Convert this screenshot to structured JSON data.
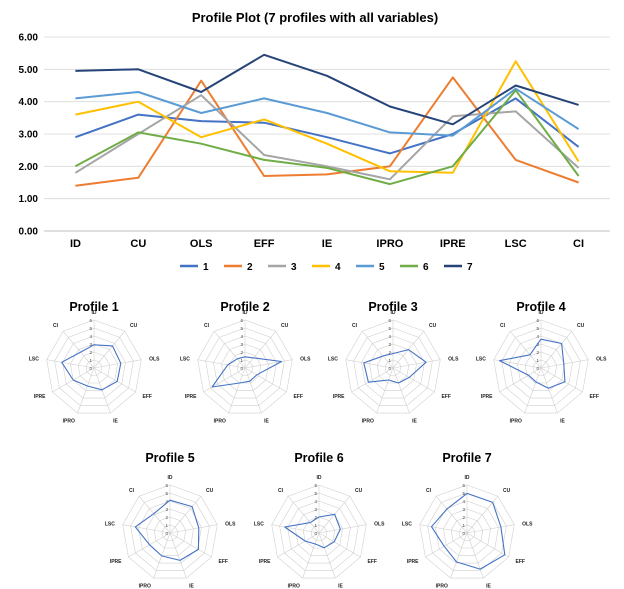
{
  "chart_data": [
    {
      "type": "line",
      "title": "Profile Plot (7 profiles with all variables)",
      "categories": [
        "ID",
        "CU",
        "OLS",
        "EFF",
        "IE",
        "IPRO",
        "IPRE",
        "LSC",
        "CI"
      ],
      "y_tick_labels": [
        "0.00",
        "1.00",
        "2.00",
        "3.00",
        "4.00",
        "5.00",
        "6.00"
      ],
      "ylim": [
        0,
        6
      ],
      "grid": true,
      "legend_position": "bottom",
      "series": [
        {
          "name": "1",
          "color": "#4472C4",
          "values": [
            2.9,
            3.6,
            3.4,
            3.35,
            2.9,
            2.4,
            3.0,
            4.1,
            2.6
          ]
        },
        {
          "name": "2",
          "color": "#ED7D31",
          "values": [
            1.4,
            1.65,
            4.65,
            1.7,
            1.75,
            2.0,
            4.75,
            2.2,
            1.5
          ]
        },
        {
          "name": "3",
          "color": "#A5A5A5",
          "values": [
            1.8,
            3.0,
            4.2,
            2.35,
            2.0,
            1.6,
            3.55,
            3.7,
            1.95
          ]
        },
        {
          "name": "4",
          "color": "#FFC000",
          "values": [
            3.6,
            4.0,
            2.9,
            3.45,
            2.7,
            1.85,
            1.8,
            5.25,
            2.15
          ]
        },
        {
          "name": "5",
          "color": "#5B9BD5",
          "values": [
            4.1,
            4.3,
            3.65,
            4.1,
            3.65,
            3.05,
            2.95,
            4.4,
            3.15
          ]
        },
        {
          "name": "6",
          "color": "#70AD47",
          "values": [
            2.0,
            3.05,
            2.7,
            2.2,
            1.95,
            1.45,
            2.0,
            4.35,
            1.7
          ]
        },
        {
          "name": "7",
          "color": "#264478",
          "values": [
            4.95,
            5.0,
            4.3,
            5.45,
            4.8,
            3.85,
            3.3,
            4.5,
            3.9
          ]
        }
      ]
    },
    {
      "type": "radar",
      "axes": [
        "ID",
        "CU",
        "OLS",
        "EFF",
        "IE",
        "IPRO",
        "IPRE",
        "LSC",
        "CI"
      ],
      "ring_labels": [
        "0",
        "1",
        "2",
        "3",
        "4",
        "5",
        "6"
      ],
      "rmax": 6,
      "line_color": "#4472C4",
      "profiles": [
        {
          "title": "Profile 1",
          "values": [
            2.9,
            3.6,
            3.4,
            3.35,
            2.9,
            2.4,
            3.0,
            4.1,
            2.6
          ]
        },
        {
          "title": "Profile 2",
          "values": [
            1.4,
            1.65,
            4.65,
            1.7,
            1.75,
            2.0,
            4.75,
            2.2,
            1.5
          ]
        },
        {
          "title": "Profile 3",
          "values": [
            1.8,
            3.0,
            4.2,
            2.35,
            2.0,
            1.6,
            3.55,
            3.7,
            1.95
          ]
        },
        {
          "title": "Profile 4",
          "values": [
            3.6,
            4.0,
            2.9,
            3.45,
            2.7,
            1.85,
            1.8,
            5.25,
            2.15
          ]
        },
        {
          "title": "Profile 5",
          "values": [
            4.1,
            4.3,
            3.65,
            4.1,
            3.65,
            3.05,
            2.95,
            4.4,
            3.15
          ]
        },
        {
          "title": "Profile 6",
          "values": [
            2.0,
            3.05,
            2.7,
            2.2,
            1.95,
            1.45,
            2.0,
            4.35,
            1.7
          ]
        },
        {
          "title": "Profile 7",
          "values": [
            4.95,
            5.0,
            4.3,
            5.45,
            4.8,
            3.85,
            3.3,
            4.5,
            3.9
          ]
        }
      ]
    }
  ]
}
